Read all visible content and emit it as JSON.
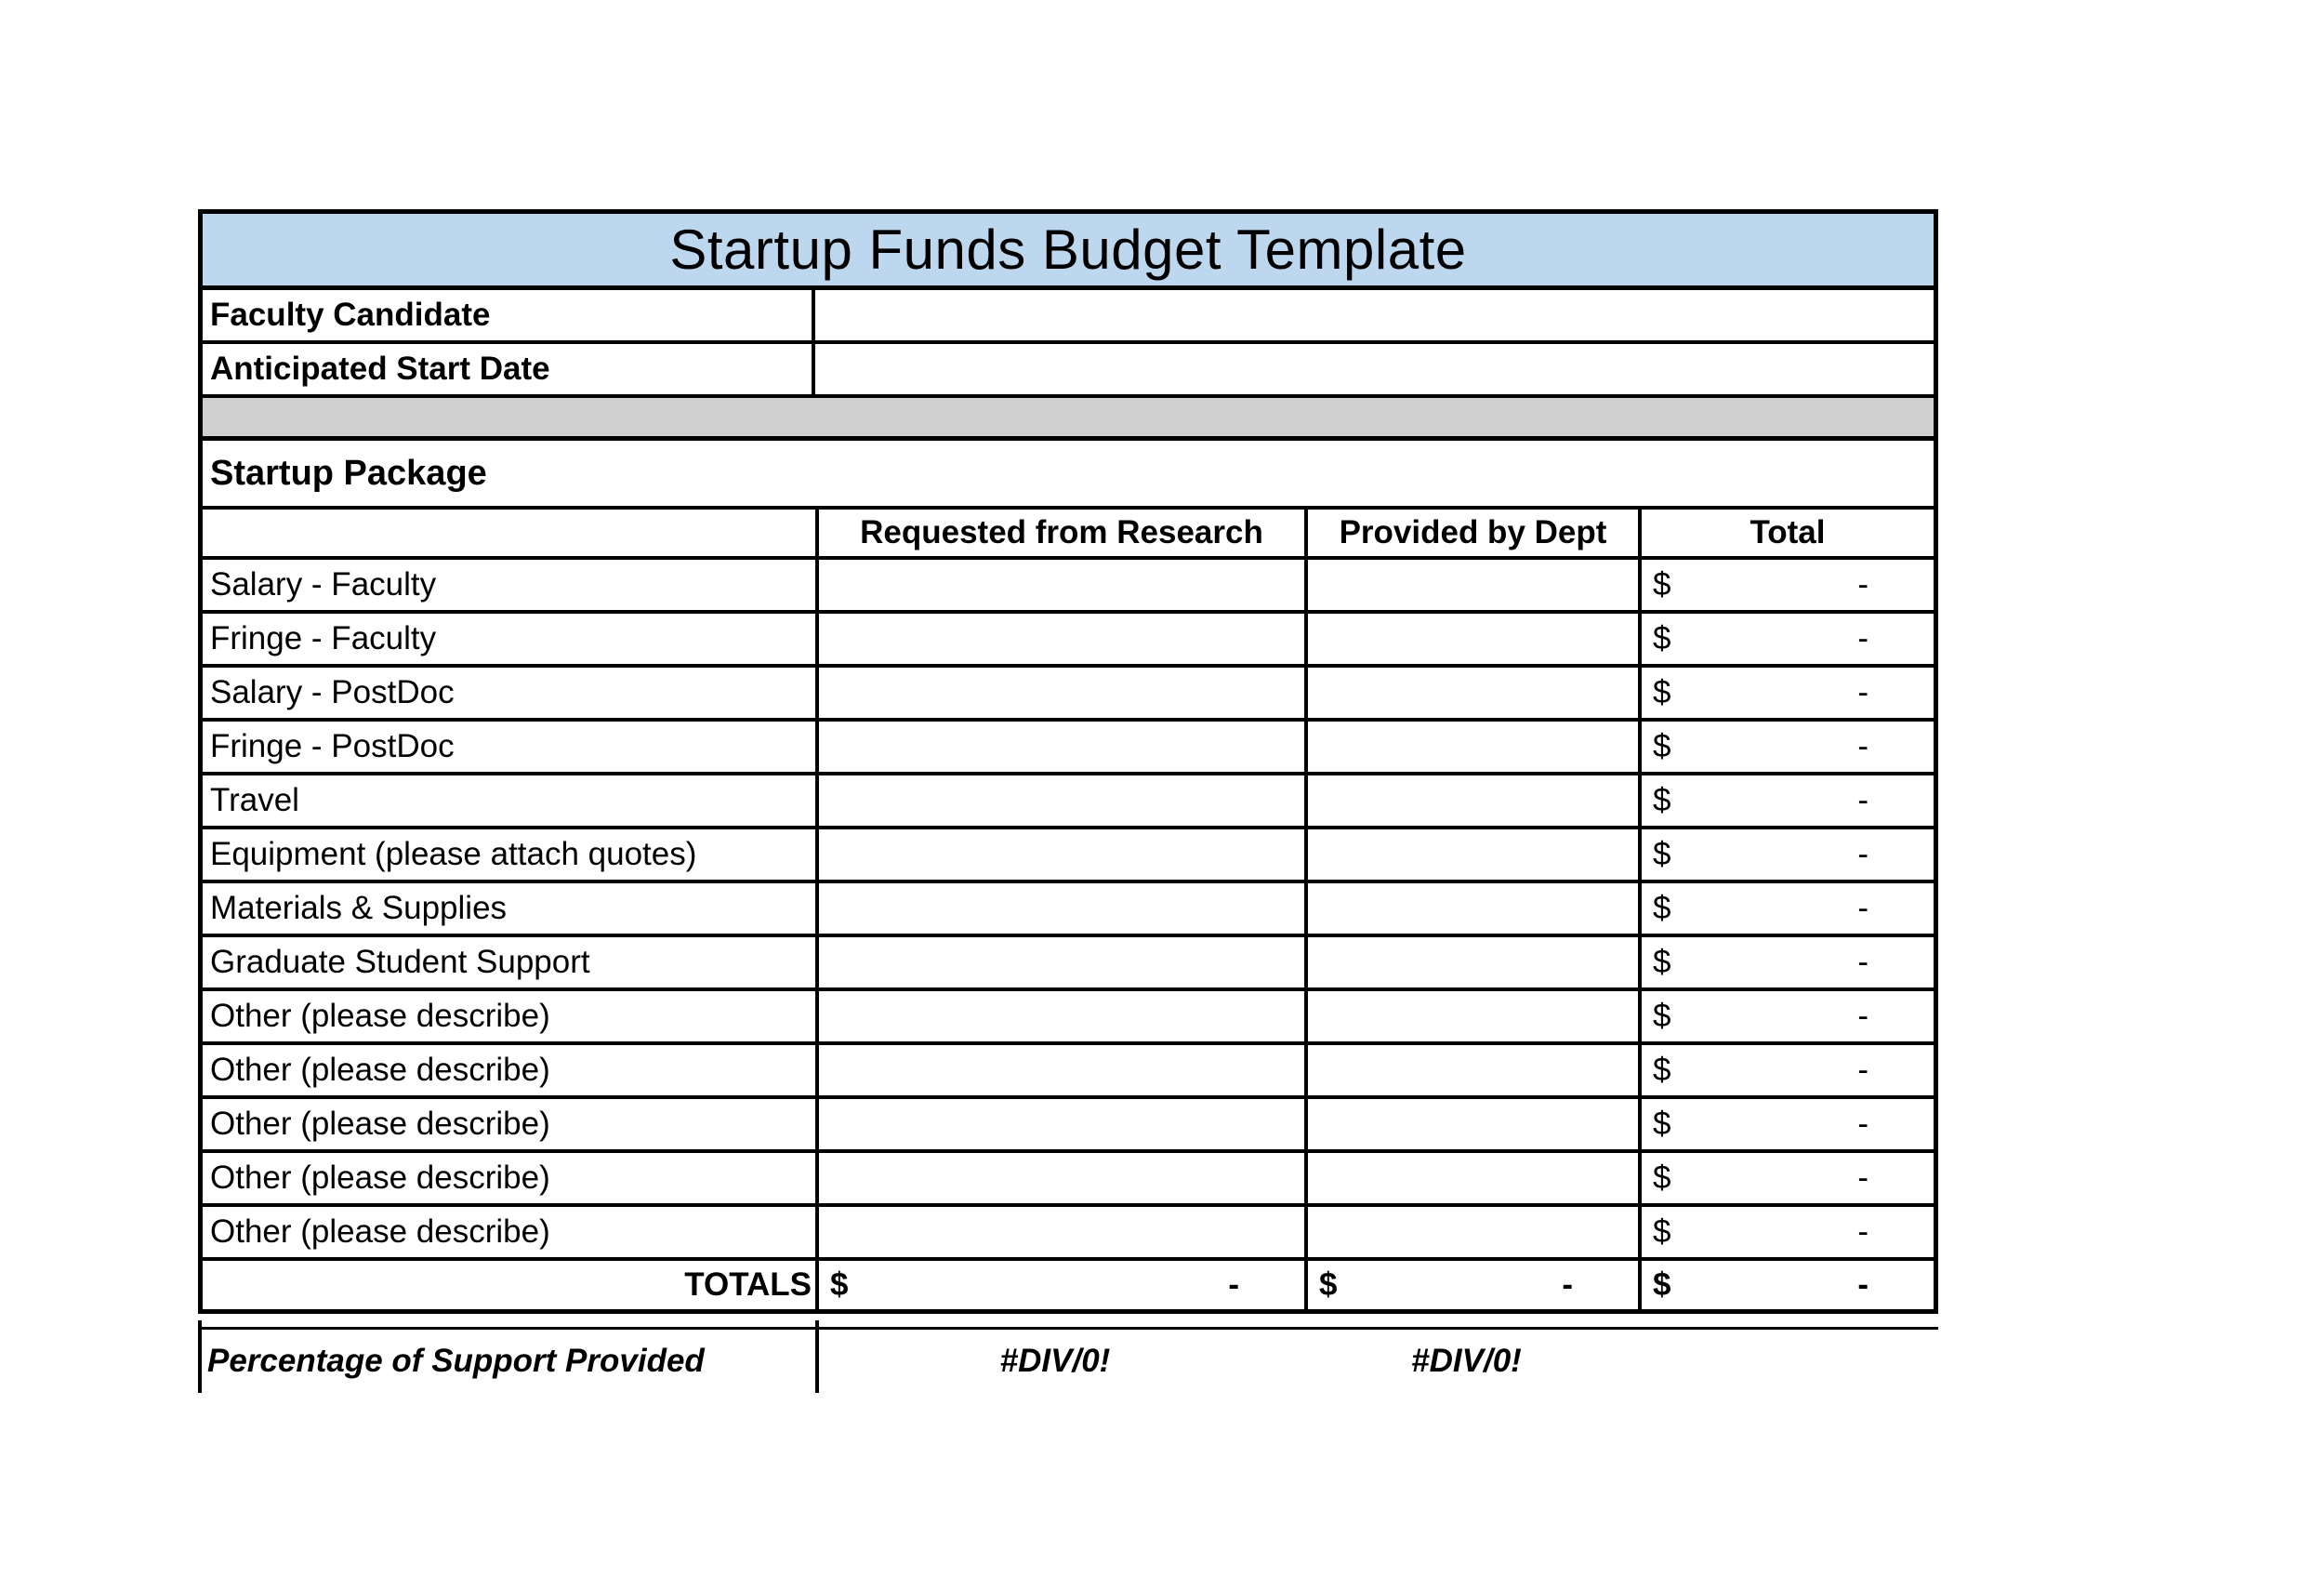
{
  "title": "Startup Funds Budget Template",
  "info": [
    {
      "label": "Faculty Candidate",
      "value": ""
    },
    {
      "label": "Anticipated Start Date",
      "value": ""
    }
  ],
  "section_header": "Startup Package",
  "table_headers": {
    "item": "",
    "requested": "Requested from Research",
    "provided": "Provided by Dept",
    "total": "Total"
  },
  "rows": [
    {
      "label": "Salary - Faculty",
      "requested": "",
      "provided": "",
      "total_symbol": "$",
      "total_amount": "-"
    },
    {
      "label": "Fringe - Faculty",
      "requested": "",
      "provided": "",
      "total_symbol": "$",
      "total_amount": "-"
    },
    {
      "label": "Salary - PostDoc",
      "requested": "",
      "provided": "",
      "total_symbol": "$",
      "total_amount": "-"
    },
    {
      "label": "Fringe - PostDoc",
      "requested": "",
      "provided": "",
      "total_symbol": "$",
      "total_amount": "-"
    },
    {
      "label": "Travel",
      "requested": "",
      "provided": "",
      "total_symbol": "$",
      "total_amount": "-"
    },
    {
      "label": "Equipment (please attach quotes)",
      "requested": "",
      "provided": "",
      "total_symbol": "$",
      "total_amount": "-"
    },
    {
      "label": "Materials & Supplies",
      "requested": "",
      "provided": "",
      "total_symbol": "$",
      "total_amount": "-"
    },
    {
      "label": "Graduate Student Support",
      "requested": "",
      "provided": "",
      "total_symbol": "$",
      "total_amount": "-"
    },
    {
      "label": "Other (please describe)",
      "requested": "",
      "provided": "",
      "total_symbol": "$",
      "total_amount": "-"
    },
    {
      "label": "Other (please describe)",
      "requested": "",
      "provided": "",
      "total_symbol": "$",
      "total_amount": "-"
    },
    {
      "label": "Other (please describe)",
      "requested": "",
      "provided": "",
      "total_symbol": "$",
      "total_amount": "-"
    },
    {
      "label": "Other (please describe)",
      "requested": "",
      "provided": "",
      "total_symbol": "$",
      "total_amount": "-"
    },
    {
      "label": "Other (please describe)",
      "requested": "",
      "provided": "",
      "total_symbol": "$",
      "total_amount": "-"
    }
  ],
  "totals_row": {
    "label": "TOTALS",
    "requested_symbol": "$",
    "requested_amount": "-",
    "provided_symbol": "$",
    "provided_amount": "-",
    "total_symbol": "$",
    "total_amount": "-"
  },
  "percentage_row": {
    "label": "Percentage of Support Provided",
    "requested": "#DIV/0!",
    "provided": "#DIV/0!"
  },
  "colors": {
    "title_background": "#BDD7EE",
    "separator_background": "#CFCFCF",
    "border": "#000000"
  }
}
